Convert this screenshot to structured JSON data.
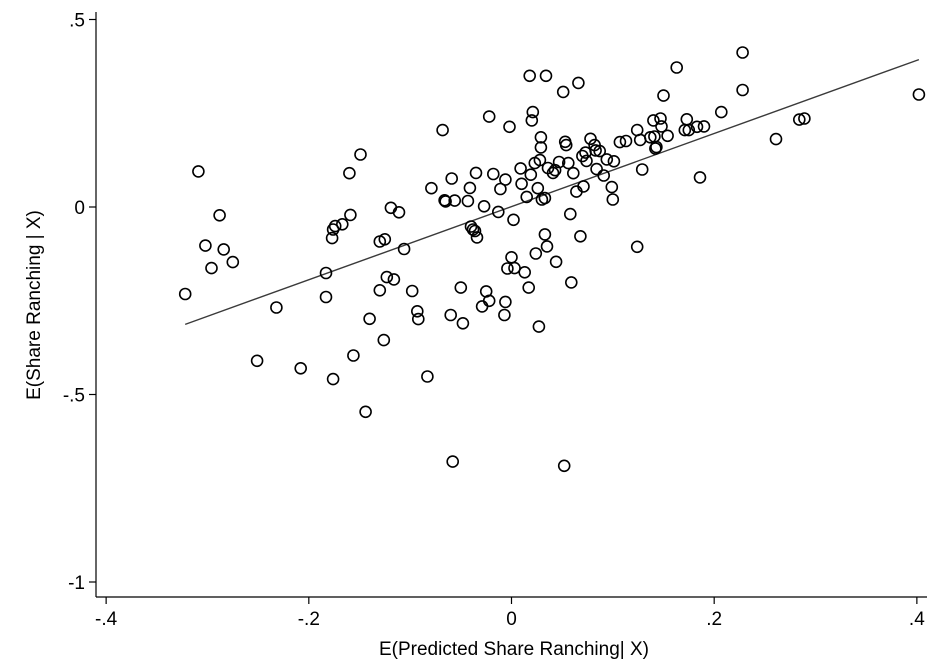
{
  "chart_data": {
    "type": "scatter",
    "title": "",
    "xlabel": "E(Predicted Share Ranching| X)",
    "ylabel": "E(Share Ranching | X)",
    "xlim": [
      -0.41,
      0.41
    ],
    "ylim": [
      -1.04,
      0.52
    ],
    "x_ticks": [
      -0.4,
      -0.2,
      0,
      0.2,
      0.4
    ],
    "x_tick_labels": [
      "-.4",
      "-.2",
      "0",
      ".2",
      ".4"
    ],
    "y_ticks": [
      0.5,
      0,
      -0.5,
      -1
    ],
    "y_tick_labels": [
      ".5",
      "0",
      "-.5",
      "-1"
    ],
    "grid": false,
    "fit_line": {
      "x": [
        -0.322,
        0.402
      ],
      "y": [
        -0.313,
        0.393
      ]
    },
    "points": [
      [
        -0.322,
        -0.232
      ],
      [
        -0.309,
        0.095
      ],
      [
        -0.302,
        -0.103
      ],
      [
        -0.296,
        -0.163
      ],
      [
        -0.288,
        -0.022
      ],
      [
        -0.284,
        -0.113
      ],
      [
        -0.275,
        -0.147
      ],
      [
        -0.251,
        -0.41
      ],
      [
        -0.232,
        -0.268
      ],
      [
        -0.208,
        -0.43
      ],
      [
        -0.183,
        -0.176
      ],
      [
        -0.183,
        -0.24
      ],
      [
        -0.177,
        -0.083
      ],
      [
        -0.176,
        -0.459
      ],
      [
        -0.176,
        -0.06
      ],
      [
        -0.174,
        -0.051
      ],
      [
        -0.167,
        -0.046
      ],
      [
        -0.16,
        0.09
      ],
      [
        -0.159,
        -0.021
      ],
      [
        -0.156,
        -0.396
      ],
      [
        -0.149,
        0.14
      ],
      [
        -0.144,
        -0.546
      ],
      [
        -0.14,
        -0.298
      ],
      [
        -0.13,
        -0.222
      ],
      [
        -0.13,
        -0.092
      ],
      [
        -0.126,
        -0.355
      ],
      [
        -0.125,
        -0.086
      ],
      [
        -0.123,
        -0.187
      ],
      [
        -0.119,
        -0.002
      ],
      [
        -0.116,
        -0.193
      ],
      [
        -0.111,
        -0.014
      ],
      [
        -0.106,
        -0.112
      ],
      [
        -0.098,
        -0.224
      ],
      [
        -0.093,
        -0.278
      ],
      [
        -0.092,
        -0.299
      ],
      [
        -0.083,
        -0.452
      ],
      [
        -0.079,
        0.05
      ],
      [
        -0.068,
        0.205
      ],
      [
        -0.066,
        0.018
      ],
      [
        -0.065,
        0.015
      ],
      [
        -0.06,
        -0.288
      ],
      [
        -0.059,
        0.076
      ],
      [
        -0.058,
        -0.679
      ],
      [
        -0.056,
        0.017
      ],
      [
        -0.05,
        -0.215
      ],
      [
        -0.048,
        -0.31
      ],
      [
        -0.043,
        0.016
      ],
      [
        -0.041,
        0.051
      ],
      [
        -0.04,
        -0.052
      ],
      [
        -0.038,
        -0.06
      ],
      [
        -0.036,
        -0.064
      ],
      [
        -0.035,
        0.091
      ],
      [
        -0.034,
        -0.081
      ],
      [
        -0.029,
        -0.265
      ],
      [
        -0.027,
        0.002
      ],
      [
        -0.025,
        -0.225
      ],
      [
        -0.022,
        -0.25
      ],
      [
        -0.022,
        0.241
      ],
      [
        -0.018,
        0.088
      ],
      [
        -0.013,
        -0.013
      ],
      [
        -0.011,
        0.048
      ],
      [
        -0.007,
        -0.288
      ],
      [
        -0.006,
        -0.253
      ],
      [
        -0.006,
        0.073
      ],
      [
        -0.004,
        -0.164
      ],
      [
        -0.002,
        0.214
      ],
      [
        0.0,
        -0.134
      ],
      [
        0.002,
        -0.034
      ],
      [
        0.003,
        -0.163
      ],
      [
        0.009,
        0.103
      ],
      [
        0.01,
        0.062
      ],
      [
        0.013,
        -0.174
      ],
      [
        0.015,
        0.027
      ],
      [
        0.017,
        -0.215
      ],
      [
        0.018,
        0.35
      ],
      [
        0.019,
        0.086
      ],
      [
        0.02,
        0.231
      ],
      [
        0.021,
        0.253
      ],
      [
        0.023,
        0.117
      ],
      [
        0.024,
        -0.124
      ],
      [
        0.026,
        0.05
      ],
      [
        0.027,
        -0.319
      ],
      [
        0.028,
        0.125
      ],
      [
        0.029,
        0.186
      ],
      [
        0.029,
        0.159
      ],
      [
        0.03,
        0.02
      ],
      [
        0.033,
        0.024
      ],
      [
        0.033,
        -0.073
      ],
      [
        0.034,
        0.35
      ],
      [
        0.035,
        -0.105
      ],
      [
        0.036,
        0.104
      ],
      [
        0.041,
        0.091
      ],
      [
        0.043,
        0.098
      ],
      [
        0.044,
        -0.146
      ],
      [
        0.047,
        0.12
      ],
      [
        0.051,
        0.307
      ],
      [
        0.052,
        -0.69
      ],
      [
        0.053,
        0.174
      ],
      [
        0.054,
        0.165
      ],
      [
        0.056,
        0.117
      ],
      [
        0.058,
        -0.019
      ],
      [
        0.059,
        -0.201
      ],
      [
        0.061,
        0.09
      ],
      [
        0.064,
        0.041
      ],
      [
        0.066,
        0.331
      ],
      [
        0.068,
        -0.078
      ],
      [
        0.07,
        0.136
      ],
      [
        0.071,
        0.055
      ],
      [
        0.073,
        0.145
      ],
      [
        0.074,
        0.123
      ],
      [
        0.078,
        0.182
      ],
      [
        0.082,
        0.165
      ],
      [
        0.083,
        0.151
      ],
      [
        0.084,
        0.101
      ],
      [
        0.087,
        0.149
      ],
      [
        0.091,
        0.084
      ],
      [
        0.094,
        0.127
      ],
      [
        0.099,
        0.053
      ],
      [
        0.1,
        0.02
      ],
      [
        0.101,
        0.122
      ],
      [
        0.107,
        0.173
      ],
      [
        0.113,
        0.176
      ],
      [
        0.124,
        -0.106
      ],
      [
        0.124,
        0.205
      ],
      [
        0.127,
        0.179
      ],
      [
        0.129,
        0.1
      ],
      [
        0.137,
        0.186
      ],
      [
        0.14,
        0.231
      ],
      [
        0.141,
        0.188
      ],
      [
        0.142,
        0.156
      ],
      [
        0.143,
        0.16
      ],
      [
        0.147,
        0.236
      ],
      [
        0.148,
        0.215
      ],
      [
        0.15,
        0.297
      ],
      [
        0.154,
        0.19
      ],
      [
        0.163,
        0.372
      ],
      [
        0.171,
        0.205
      ],
      [
        0.173,
        0.234
      ],
      [
        0.175,
        0.205
      ],
      [
        0.183,
        0.214
      ],
      [
        0.186,
        0.079
      ],
      [
        0.19,
        0.215
      ],
      [
        0.207,
        0.253
      ],
      [
        0.228,
        0.412
      ],
      [
        0.228,
        0.312
      ],
      [
        0.261,
        0.181
      ],
      [
        0.284,
        0.233
      ],
      [
        0.289,
        0.236
      ],
      [
        0.402,
        0.3
      ]
    ]
  }
}
